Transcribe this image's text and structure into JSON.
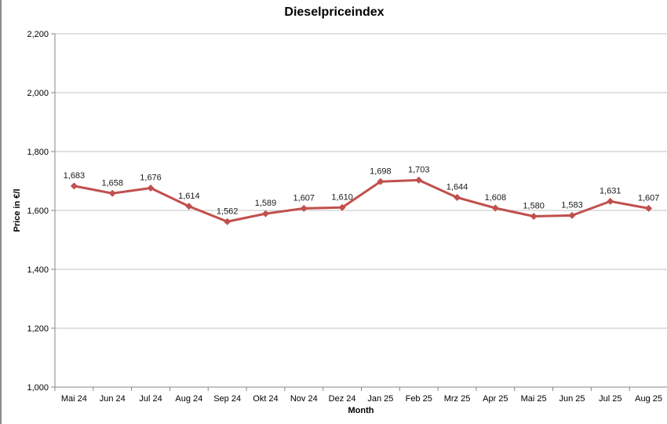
{
  "window": {
    "background": "#ffffff",
    "left_border_color": "#8a8a8a"
  },
  "chart_data": {
    "type": "line",
    "title": "Dieselpriceindex",
    "xlabel": "Month",
    "ylabel": "Price in €/l",
    "categories": [
      "Mai 24",
      "Jun 24",
      "Jul 24",
      "Aug 24",
      "Sep 24",
      "Okt 24",
      "Nov 24",
      "Dez 24",
      "Jan 25",
      "Feb 25",
      "Mrz 25",
      "Apr 25",
      "Mai 25",
      "Jun 25",
      "Jul 25",
      "Aug 25"
    ],
    "series": [
      {
        "name": "Dieselpriceindex",
        "values": [
          1683,
          1658,
          1676,
          1614,
          1562,
          1589,
          1607,
          1610,
          1698,
          1703,
          1644,
          1608,
          1580,
          1583,
          1631,
          1607
        ],
        "point_labels": [
          "1,683",
          "1,658",
          "1,676",
          "1,614",
          "1,562",
          "1,589",
          "1,607",
          "1,610",
          "1,698",
          "1,703",
          "1,644",
          "1,608",
          "1,580",
          "1,583",
          "1,631",
          "1,607"
        ],
        "color": "#C0504D",
        "marker": "diamond"
      }
    ],
    "ylim": [
      1000,
      2200
    ],
    "ytick_step": 200,
    "ytick_labels": [
      "1,000",
      "1,200",
      "1,400",
      "1,600",
      "1,800",
      "2,000",
      "2,200"
    ],
    "grid": "horizontal",
    "legend": "none",
    "gridline_color": "#c3c3c3",
    "axis_color": "#878787",
    "tick_label_color": "#000000",
    "data_label_color": "#1a1a1a"
  }
}
